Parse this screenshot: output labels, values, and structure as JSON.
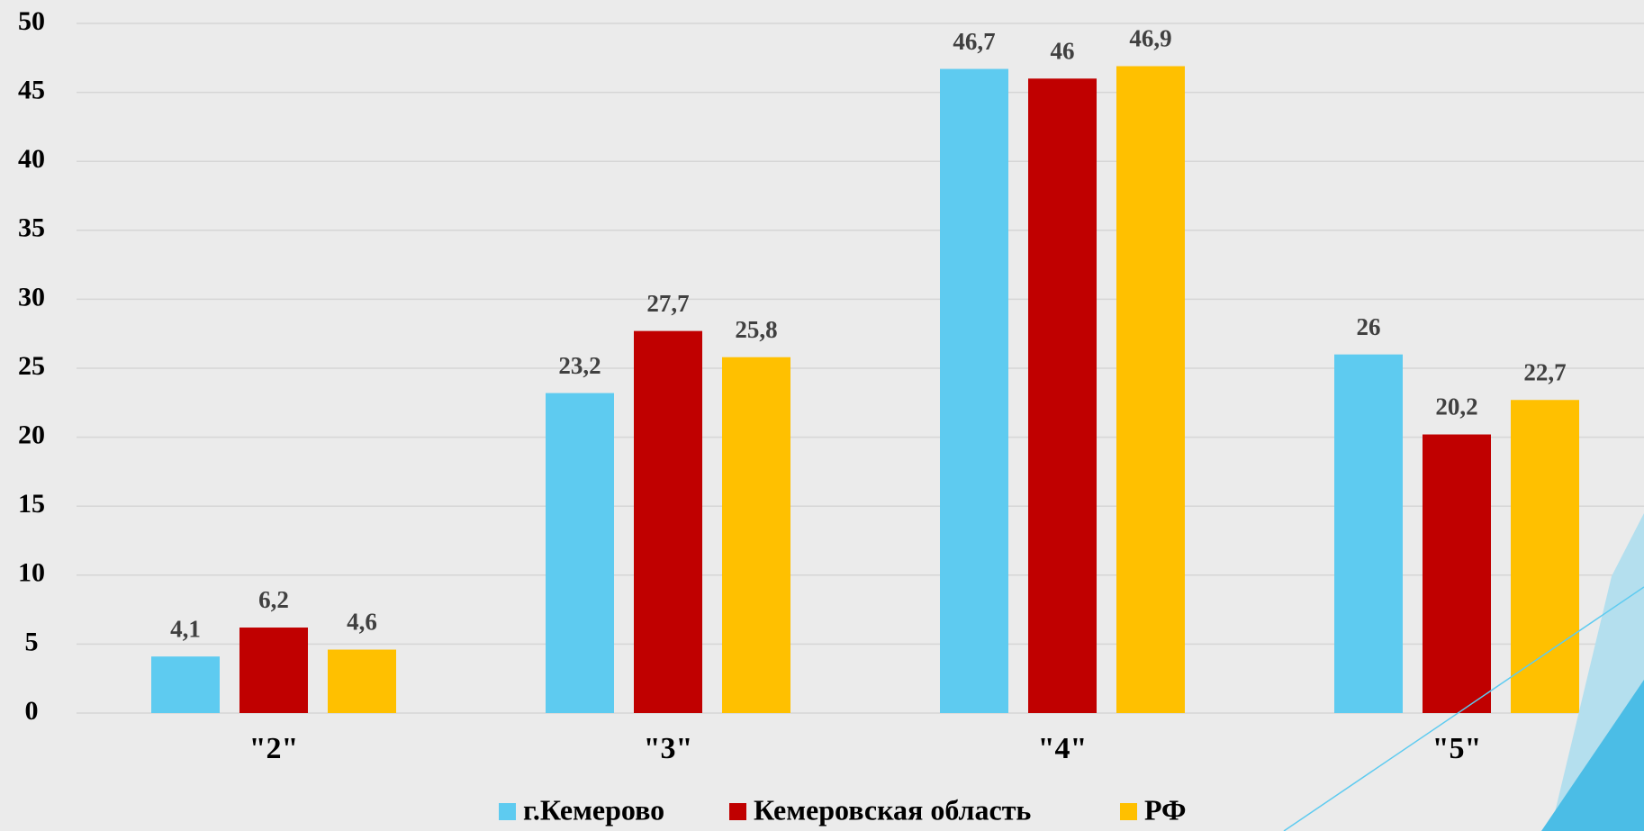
{
  "chart_data": {
    "type": "bar",
    "categories": [
      "\"2\"",
      "\"3\"",
      "\"4\"",
      "\"5\""
    ],
    "series": [
      {
        "name": "г.Кемерово",
        "color": "#5ecbf0",
        "values": [
          4.1,
          23.2,
          46.7,
          26
        ],
        "value_labels": [
          "4,1",
          "23,2",
          "46,7",
          "26"
        ]
      },
      {
        "name": "Кемеровская область",
        "color": "#c00000",
        "values": [
          6.2,
          27.7,
          46,
          20.2
        ],
        "value_labels": [
          "6,2",
          "27,7",
          "46",
          "20,2"
        ]
      },
      {
        "name": "РФ",
        "color": "#ffc000",
        "values": [
          4.6,
          25.8,
          46.9,
          22.7
        ],
        "value_labels": [
          "4,6",
          "25,8",
          "46,9",
          "22,7"
        ]
      }
    ],
    "ylim": [
      0,
      50
    ],
    "yticks": [
      0,
      5,
      10,
      15,
      20,
      25,
      30,
      35,
      40,
      45,
      50
    ],
    "grid": true,
    "legend": "bottom"
  }
}
